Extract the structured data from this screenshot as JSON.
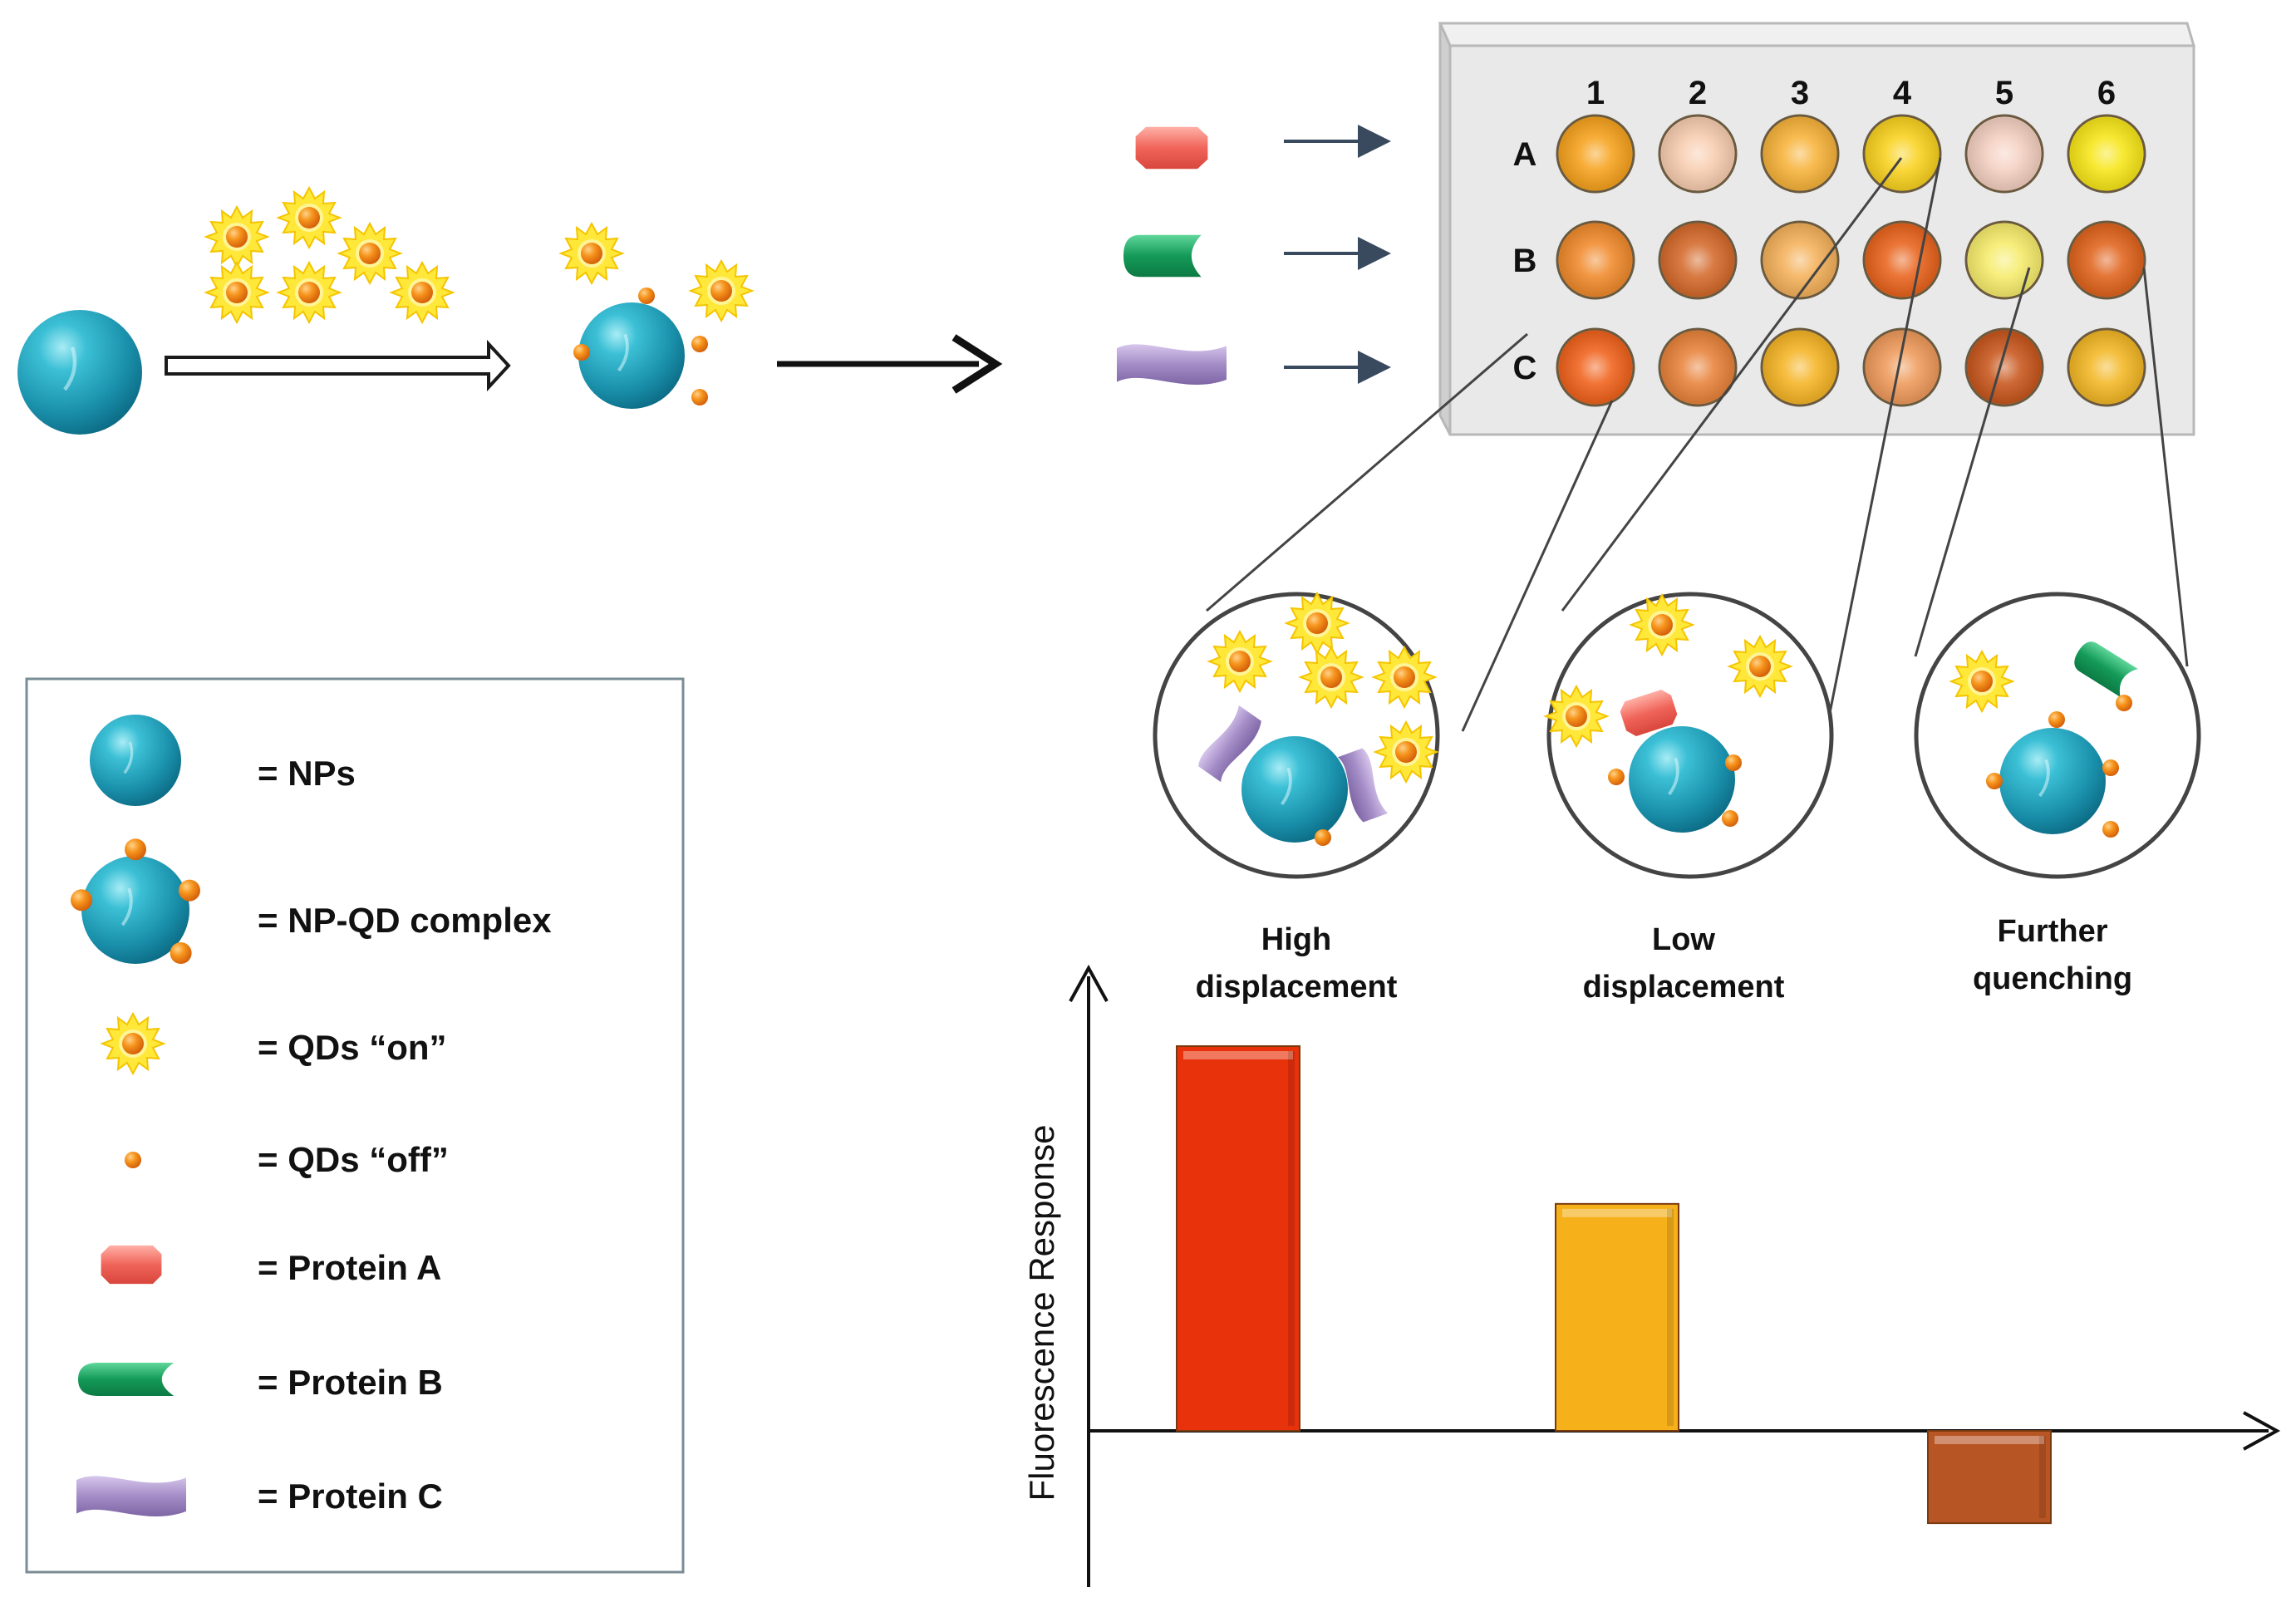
{
  "legend": {
    "items": [
      {
        "symbol": "np",
        "label": "= NPs"
      },
      {
        "symbol": "np-qd",
        "label": "= NP-QD complex"
      },
      {
        "symbol": "qd-on",
        "label": "= QDs “on”"
      },
      {
        "symbol": "qd-off",
        "label": "= QDs “off”"
      },
      {
        "symbol": "protein-a",
        "label": "= Protein A"
      },
      {
        "symbol": "protein-b",
        "label": "= Protein B"
      },
      {
        "symbol": "protein-c",
        "label": "= Protein C"
      }
    ]
  },
  "plate": {
    "columns": [
      "1",
      "2",
      "3",
      "4",
      "5",
      "6"
    ],
    "rows": [
      {
        "label": "A",
        "protein": "protein-a",
        "wells": [
          "#f6a21c",
          "#f8cdb0",
          "#f7b33a",
          "#f9d21f",
          "#f5d0c2",
          "#f7e619"
        ]
      },
      {
        "label": "B",
        "protein": "protein-b",
        "wells": [
          "#f08a2c",
          "#d4692a",
          "#f4b15a",
          "#e8631c",
          "#f6ec6c",
          "#e0631c"
        ]
      },
      {
        "label": "C",
        "protein": "protein-c",
        "wells": [
          "#f0621c",
          "#e8823a",
          "#f5b425",
          "#ee9a5a",
          "#c8561c",
          "#f3b724"
        ]
      }
    ]
  },
  "outcomes": [
    {
      "line1": "High",
      "line2": "displacement"
    },
    {
      "line1": "Low",
      "line2": "displacement"
    },
    {
      "line1": "Further",
      "line2": "quenching"
    }
  ],
  "chart_data": {
    "type": "bar",
    "categories": [
      "High displacement",
      "Low displacement",
      "Further quenching"
    ],
    "values": [
      1.0,
      0.59,
      -0.24
    ],
    "colors": [
      "#e8320c",
      "#f5b01a",
      "#b85525"
    ],
    "ylabel": "Fluorescence Response",
    "xlabel": "",
    "ylim": [
      -0.4,
      1.2
    ]
  }
}
